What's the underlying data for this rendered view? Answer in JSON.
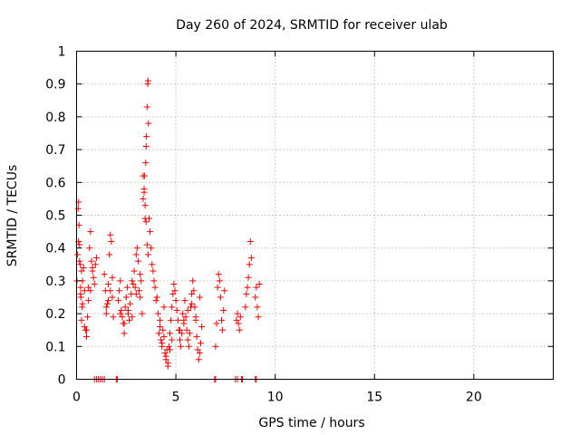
{
  "chart_data": {
    "type": "scatter",
    "title": "Day 260 of 2024, SRMTID for receiver ulab",
    "xlabel": "GPS time / hours",
    "ylabel": "SRMTID / TECUs",
    "xlim": [
      0,
      24
    ],
    "ylim": [
      0,
      1
    ],
    "xticks": [
      0,
      5,
      10,
      15,
      20
    ],
    "xtick_labels": [
      "0",
      "5",
      "10",
      "15",
      "20"
    ],
    "yticks": [
      0,
      0.1,
      0.2,
      0.3,
      0.4,
      0.5,
      0.6,
      0.7,
      0.8,
      0.9,
      1
    ],
    "ytick_labels": [
      "0",
      "0.1",
      "0.2",
      "0.3",
      "0.4",
      "0.5",
      "0.6",
      "0.7",
      "0.8",
      "0.9",
      "1"
    ],
    "grid": true,
    "marker": "+",
    "color": "#ff0000",
    "series": [
      {
        "name": "SRMTID",
        "x": [
          0.02,
          0.05,
          0.08,
          0.1,
          0.12,
          0.15,
          0.18,
          0.2,
          0.22,
          0.25,
          0.28,
          0.3,
          0.35,
          0.4,
          0.45,
          0.5,
          0.55,
          0.6,
          0.65,
          0.7,
          0.75,
          0.8,
          0.85,
          0.9,
          0.95,
          1.0,
          1.4,
          1.45,
          1.5,
          1.55,
          1.6,
          1.65,
          1.7,
          1.75,
          1.8,
          1.85,
          2.1,
          2.15,
          2.2,
          2.25,
          2.3,
          2.35,
          2.4,
          2.45,
          2.5,
          2.55,
          2.6,
          2.65,
          2.7,
          2.75,
          2.8,
          2.85,
          2.9,
          2.95,
          3.0,
          3.05,
          3.1,
          3.15,
          3.2,
          3.25,
          3.3,
          3.35,
          3.4,
          3.42,
          3.45,
          3.48,
          3.5,
          3.52,
          3.55,
          3.58,
          3.6,
          3.62,
          3.65,
          3.7,
          3.75,
          3.8,
          3.85,
          3.9,
          3.95,
          4.0,
          4.05,
          4.1,
          4.15,
          4.2,
          4.25,
          4.3,
          4.35,
          4.4,
          4.45,
          4.5,
          4.55,
          4.6,
          4.65,
          4.7,
          4.75,
          4.8,
          4.85,
          4.9,
          4.95,
          5.0,
          5.05,
          5.1,
          5.15,
          5.2,
          5.25,
          5.3,
          5.35,
          5.4,
          5.45,
          5.5,
          5.55,
          5.6,
          5.65,
          5.7,
          5.75,
          5.8,
          5.85,
          5.9,
          5.95,
          6.0,
          6.05,
          6.1,
          6.15,
          6.2,
          6.25,
          6.3,
          7.0,
          7.05,
          7.1,
          7.15,
          7.2,
          7.25,
          7.3,
          7.35,
          7.4,
          7.45,
          8.05,
          8.1,
          8.15,
          8.2,
          8.25,
          8.5,
          8.55,
          8.6,
          8.65,
          8.7,
          8.75,
          8.8,
          9.0,
          9.05,
          9.1,
          9.15,
          9.2,
          0.1,
          0.15,
          0.2,
          0.25,
          0.3,
          0.4,
          0.5,
          0.6,
          0.7,
          0.8,
          1.5,
          1.6,
          1.7,
          1.8,
          2.2,
          2.4,
          2.6,
          2.8,
          3.0,
          3.2,
          3.35,
          3.4,
          3.45,
          3.5,
          3.55,
          3.6,
          4.2,
          4.3,
          4.4,
          4.5,
          4.6,
          4.7,
          4.8,
          5.2,
          5.4,
          5.6,
          5.8,
          6.0,
          6.2,
          0.9,
          1.0,
          1.1,
          1.2,
          1.3,
          1.4,
          2.0,
          2.05,
          6.95,
          7.0,
          8.0,
          8.1,
          8.3,
          8.35,
          9.0,
          9.05
        ],
        "y": [
          0.3,
          0.38,
          0.52,
          0.54,
          0.47,
          0.41,
          0.35,
          0.28,
          0.25,
          0.33,
          0.22,
          0.3,
          0.34,
          0.27,
          0.15,
          0.13,
          0.19,
          0.28,
          0.4,
          0.45,
          0.36,
          0.33,
          0.31,
          0.29,
          0.35,
          0.37,
          0.32,
          0.27,
          0.2,
          0.23,
          0.29,
          0.38,
          0.44,
          0.42,
          0.25,
          0.19,
          0.24,
          0.27,
          0.3,
          0.21,
          0.19,
          0.17,
          0.14,
          0.22,
          0.25,
          0.28,
          0.2,
          0.18,
          0.23,
          0.26,
          0.3,
          0.29,
          0.33,
          0.28,
          0.38,
          0.4,
          0.36,
          0.27,
          0.25,
          0.3,
          0.2,
          0.55,
          0.58,
          0.62,
          0.49,
          0.66,
          0.71,
          0.74,
          0.83,
          0.9,
          0.91,
          0.78,
          0.49,
          0.45,
          0.4,
          0.35,
          0.33,
          0.3,
          0.28,
          0.24,
          0.25,
          0.2,
          0.14,
          0.18,
          0.12,
          0.1,
          0.15,
          0.22,
          0.08,
          0.06,
          0.09,
          0.04,
          0.1,
          0.14,
          0.18,
          0.22,
          0.26,
          0.29,
          0.27,
          0.24,
          0.21,
          0.18,
          0.15,
          0.12,
          0.1,
          0.14,
          0.2,
          0.17,
          0.24,
          0.19,
          0.15,
          0.12,
          0.1,
          0.14,
          0.22,
          0.26,
          0.3,
          0.27,
          0.22,
          0.18,
          0.13,
          0.09,
          0.06,
          0.08,
          0.11,
          0.16,
          0.1,
          0.17,
          0.28,
          0.32,
          0.3,
          0.25,
          0.18,
          0.15,
          0.21,
          0.27,
          0.18,
          0.2,
          0.17,
          0.15,
          0.19,
          0.22,
          0.26,
          0.28,
          0.31,
          0.35,
          0.42,
          0.37,
          0.25,
          0.28,
          0.22,
          0.19,
          0.29,
          0.42,
          0.36,
          0.26,
          0.18,
          0.23,
          0.16,
          0.15,
          0.24,
          0.27,
          0.34,
          0.22,
          0.24,
          0.27,
          0.31,
          0.2,
          0.17,
          0.21,
          0.19,
          0.26,
          0.32,
          0.62,
          0.57,
          0.53,
          0.48,
          0.41,
          0.38,
          0.16,
          0.11,
          0.13,
          0.07,
          0.05,
          0.09,
          0.12,
          0.15,
          0.18,
          0.21,
          0.23,
          0.19,
          0.25,
          0,
          0,
          0,
          0,
          0,
          0,
          0,
          0,
          0,
          0,
          0,
          0,
          0,
          0,
          0,
          0
        ]
      }
    ]
  }
}
